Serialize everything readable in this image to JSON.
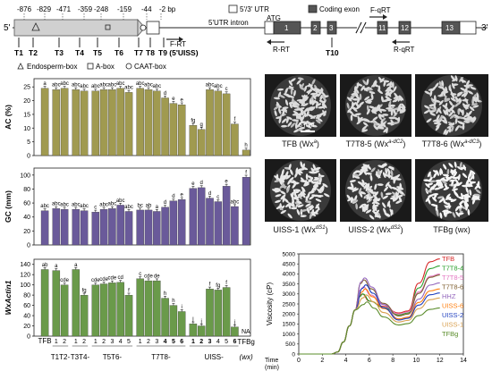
{
  "gene": {
    "positions": [
      "-876",
      "-829",
      "-471",
      "-359",
      "-248",
      "-159",
      "-44",
      "-2 bp"
    ],
    "start_label": "5'",
    "end_label": "3'",
    "ttargets": [
      "T1",
      "T2",
      "T3",
      "T4",
      "T5",
      "T6",
      "T7",
      "T8",
      "T9 (5'UISS)",
      "T10"
    ],
    "legend": {
      "endosperm": "Endosperm-box",
      "abox": "A-box",
      "caat": "CAAT-box"
    },
    "legend2": {
      "utr": "5'/3' UTR",
      "coding": "Coding exon",
      "intron": "5'UTR  intron",
      "atg": "ATG"
    },
    "primers": [
      "F-RT",
      "R-RT",
      "F-qRT",
      "R-qRT"
    ],
    "exons": [
      "1",
      "2",
      "3",
      "11",
      "12",
      "13"
    ]
  },
  "panels": {
    "ac": {
      "ylabel": "AC (%)",
      "ticks": [
        "0",
        "5",
        "10",
        "15",
        "20",
        "25"
      ]
    },
    "gc": {
      "ylabel": "GC (mm)",
      "ticks": [
        "0",
        "20",
        "40",
        "60",
        "80",
        "100"
      ]
    },
    "expr": {
      "ylabel": "WxActin1",
      "ticks": [
        "0",
        "20",
        "40",
        "60",
        "80",
        "100",
        "120",
        "140"
      ],
      "na": "NA"
    }
  },
  "xaxis": {
    "groups": [
      {
        "name": "TFB",
        "lines": [
          ""
        ]
      },
      {
        "name": "T1T2-",
        "lines": [
          "1",
          "2"
        ]
      },
      {
        "name": "T3T4-",
        "lines": [
          "1",
          "2"
        ]
      },
      {
        "name": "T5T6-",
        "lines": [
          "1",
          "2",
          "3",
          "4",
          "5"
        ]
      },
      {
        "name": "T7T8-",
        "lines": [
          "1",
          "2",
          "3",
          "4",
          "5",
          "6"
        ]
      },
      {
        "name": "UISS-",
        "lines": [
          "1",
          "2",
          "3",
          "4",
          "5",
          "6"
        ]
      },
      {
        "name": "TFBg",
        "lines": [
          ""
        ]
      }
    ],
    "tfbg_sub": "(wx)"
  },
  "chart_data": [
    {
      "type": "bar",
      "ylabel": "AC (%)",
      "ylim": [
        0,
        28
      ],
      "categories": [
        "TFB",
        "T1T2-1",
        "T1T2-2",
        "T3T4-1",
        "T3T4-2",
        "T5T6-1",
        "T5T6-2",
        "T5T6-3",
        "T5T6-4",
        "T5T6-5",
        "T7T8-1",
        "T7T8-2",
        "T7T8-3",
        "T7T8-4",
        "T7T8-5",
        "T7T8-6",
        "UISS-1",
        "UISS-2",
        "UISS-3",
        "UISS-4",
        "UISS-5",
        "UISS-6",
        "TFBg"
      ],
      "values": [
        24.5,
        24.0,
        24.5,
        24.0,
        23.5,
        23.5,
        24.0,
        24.0,
        24.5,
        23.0,
        24.5,
        24.0,
        23.5,
        21.0,
        19.0,
        18.5,
        11.0,
        9.5,
        24.0,
        23.5,
        22.5,
        11.5,
        2.0
      ],
      "letters": [
        "a",
        "abc",
        "abc",
        "abc",
        "abc",
        "abc",
        "abc",
        "abc",
        "abc",
        "abc",
        "abc",
        "abc",
        "abc",
        "d",
        "e",
        "e",
        "fg",
        "g",
        "abc",
        "abc",
        "c",
        "f",
        "h"
      ]
    },
    {
      "type": "bar",
      "ylabel": "GC (mm)",
      "ylim": [
        0,
        110
      ],
      "categories": [
        "TFB",
        "T1T2-1",
        "T1T2-2",
        "T3T4-1",
        "T3T4-2",
        "T5T6-1",
        "T5T6-2",
        "T5T6-3",
        "T5T6-4",
        "T5T6-5",
        "T7T8-1",
        "T7T8-2",
        "T7T8-3",
        "T7T8-4",
        "T7T8-5",
        "T7T8-6",
        "UISS-1",
        "UISS-2",
        "UISS-3",
        "UISS-4",
        "UISS-5",
        "UISS-6",
        "TFBg"
      ],
      "values": [
        49,
        52,
        51,
        51,
        49,
        47,
        51,
        52,
        57,
        48,
        50,
        50,
        48,
        54,
        63,
        65,
        81,
        82,
        67,
        62,
        84,
        55,
        97
      ],
      "letters": [
        "abc",
        "abc",
        "abc",
        "abc",
        "abc",
        "c",
        "abc",
        "abc",
        "abc",
        "abc",
        "bc",
        "ab",
        "a",
        "d",
        "d",
        "e",
        "e",
        "d",
        "d",
        "c",
        "e",
        "abc",
        "f"
      ]
    },
    {
      "type": "bar",
      "ylabel": "WxActin1",
      "ylim": [
        0,
        150
      ],
      "categories": [
        "TFB",
        "T1T2-1",
        "T1T2-2",
        "T3T4-1",
        "T3T4-2",
        "T5T6-1",
        "T5T6-2",
        "T5T6-3",
        "T5T6-4",
        "T5T6-5",
        "T7T8-1",
        "T7T8-2",
        "T7T8-3",
        "T7T8-4",
        "T7T8-5",
        "T7T8-6",
        "UISS-1",
        "UISS-2",
        "UISS-3",
        "UISS-4",
        "UISS-5",
        "UISS-6",
        "TFBg"
      ],
      "values": [
        130,
        128,
        100,
        130,
        80,
        100,
        102,
        104,
        105,
        80,
        112,
        108,
        108,
        74,
        60,
        48,
        24,
        20,
        92,
        90,
        95,
        18,
        0
      ],
      "letters": [
        "ab",
        "a",
        "cde",
        "a",
        "fg",
        "cde",
        "cde",
        "cde",
        "cd",
        "f",
        "c",
        "cde",
        "de",
        "h",
        "h",
        "i",
        "j",
        "j",
        "f",
        "fg",
        "f",
        "j",
        ""
      ]
    },
    {
      "type": "line",
      "xlabel": "Time (min)",
      "ylabel": "Viscosity (cP)",
      "xlim": [
        0,
        14
      ],
      "ylim": [
        0,
        5000
      ],
      "xticks": [
        "0",
        "2",
        "4",
        "6",
        "8",
        "10",
        "12",
        "14"
      ],
      "yticks": [
        "0",
        "500",
        "1000",
        "1500",
        "2000",
        "2500",
        "3000",
        "3500",
        "4000",
        "4500",
        "5000"
      ],
      "series": [
        {
          "name": "TFB",
          "color": "#d62728",
          "peak": 3000,
          "trough": 2050,
          "final": 4750
        },
        {
          "name": "T7T8-4",
          "color": "#2ca02c",
          "peak": 3000,
          "trough": 1950,
          "final": 4400
        },
        {
          "name": "T7T8-5",
          "color": "#e377c2",
          "peak": 3350,
          "trough": 2000,
          "final": 4000
        },
        {
          "name": "T7T8-6",
          "color": "#7f5f30",
          "peak": 3700,
          "trough": 1900,
          "final": 3950
        },
        {
          "name": "HHZ",
          "color": "#9467bd",
          "peak": 3800,
          "trough": 1750,
          "final": 3550
        },
        {
          "name": "UISS-6",
          "color": "#ff7f0e",
          "peak": 3250,
          "trough": 1750,
          "final": 3250
        },
        {
          "name": "UISS-2",
          "color": "#1f3fbf",
          "peak": 3450,
          "trough": 1700,
          "final": 3050
        },
        {
          "name": "UISS-1",
          "color": "#d9a050",
          "peak": 2950,
          "trough": 1600,
          "final": 2800
        },
        {
          "name": "TFBg",
          "color": "#5a8c2a",
          "peak": 2600,
          "trough": 1450,
          "final": 2300
        }
      ]
    }
  ],
  "photos": {
    "p1": "TFB (Wx",
    "p1sup": "a",
    "p1end": ")",
    "p2": "T7T8-5 (Wx",
    "p2sup": "a-dC2",
    "p2end": ")",
    "p3": "T7T8-6 (Wx",
    "p3sup": "a-dC3",
    "p3end": ")",
    "p4": "UISS-1 (Wx",
    "p4sup": "dS1",
    "p4end": ")",
    "p5": "UISS-2 (Wx",
    "p5sup": "dS2",
    "p5end": ")",
    "p6": "TFBg (wx)",
    "scale": "5 mm"
  },
  "colors": {
    "ac": "#a09a50",
    "gc": "#6a5a9a",
    "expr": "#6a9a4a"
  }
}
